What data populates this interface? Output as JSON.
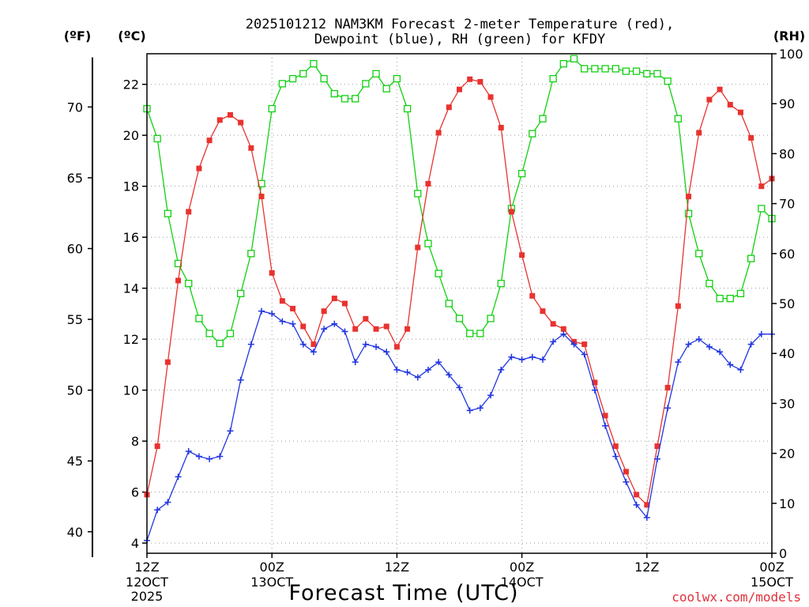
{
  "chart_data": {
    "type": "line",
    "title_line1": "2025101212 NAM3KM Forecast 2-meter Temperature (red),",
    "title_line2": "Dewpoint (blue), RH (green) for KFDY",
    "xlabel": "Forecast Time (UTC)",
    "left_outer_axis_label": "(ºF)",
    "left_inner_axis_label": "(ºC)",
    "right_axis_label": "(RH)",
    "credit": "coolwx.com/models",
    "xlim": [
      0,
      60
    ],
    "ylim_c": [
      3.6,
      23.2
    ],
    "ylim_rh": [
      0,
      100
    ],
    "grid": true,
    "x_ticks": [
      {
        "x": 0,
        "l1": "12Z",
        "l2": "12OCT",
        "l3": "2025"
      },
      {
        "x": 12,
        "l1": "00Z",
        "l2": "13OCT",
        "l3": ""
      },
      {
        "x": 24,
        "l1": "12Z",
        "l2": "",
        "l3": ""
      },
      {
        "x": 36,
        "l1": "00Z",
        "l2": "14OCT",
        "l3": ""
      },
      {
        "x": 48,
        "l1": "12Z",
        "l2": "",
        "l3": ""
      },
      {
        "x": 60,
        "l1": "00Z",
        "l2": "15OCT",
        "l3": ""
      }
    ],
    "c_ticks": [
      "4",
      "6",
      "8",
      "10",
      "12",
      "14",
      "16",
      "18",
      "20",
      "22"
    ],
    "f_ticks": [
      "40",
      "45",
      "50",
      "55",
      "60",
      "65",
      "70"
    ],
    "rh_ticks": [
      "0",
      "10",
      "20",
      "30",
      "40",
      "50",
      "60",
      "70",
      "80",
      "90",
      "100"
    ],
    "series": [
      {
        "name": "2-meter Temperature",
        "units": "C",
        "color": "#e8332f",
        "marker": "filled-square",
        "values": [
          5.9,
          7.8,
          11.1,
          14.3,
          17.0,
          18.7,
          19.8,
          20.6,
          20.8,
          20.5,
          19.5,
          17.6,
          14.6,
          13.5,
          13.2,
          12.5,
          11.8,
          13.1,
          13.6,
          13.4,
          12.4,
          12.8,
          12.4,
          12.5,
          11.7,
          12.4,
          15.6,
          18.1,
          20.1,
          21.1,
          21.8,
          22.2,
          22.1,
          21.5,
          20.3,
          17.0,
          15.3,
          13.7,
          13.1,
          12.6,
          12.4,
          11.9,
          11.8,
          10.3,
          9.0,
          7.8,
          6.8,
          5.9,
          5.5,
          7.8,
          10.1,
          13.3,
          17.6,
          20.1,
          21.4,
          21.8,
          21.2,
          20.9,
          19.9,
          18.0,
          18.3
        ]
      },
      {
        "name": "Dewpoint",
        "units": "C",
        "color": "#2035e0",
        "marker": "plus",
        "values": [
          4.1,
          5.3,
          5.6,
          6.6,
          7.6,
          7.4,
          7.3,
          7.4,
          8.4,
          10.4,
          11.8,
          13.1,
          13.0,
          12.7,
          12.6,
          11.8,
          11.5,
          12.4,
          12.6,
          12.3,
          11.1,
          11.8,
          11.7,
          11.5,
          10.8,
          10.7,
          10.5,
          10.8,
          11.1,
          10.6,
          10.1,
          9.2,
          9.3,
          9.8,
          10.8,
          11.3,
          11.2,
          11.3,
          11.2,
          11.9,
          12.2,
          11.8,
          11.4,
          10.0,
          8.6,
          7.4,
          6.4,
          5.5,
          5.0,
          7.3,
          9.3,
          11.1,
          11.8,
          12.0,
          11.7,
          11.5,
          11.0,
          10.8,
          11.8,
          12.2,
          12.2
        ]
      },
      {
        "name": "RH",
        "units": "%",
        "color": "#10d010",
        "marker": "open-square",
        "values": [
          89,
          83,
          68,
          58,
          54,
          47,
          44,
          42,
          44,
          52,
          60,
          74,
          89,
          94,
          95,
          96,
          98,
          95,
          92,
          91,
          91,
          94,
          96,
          93,
          95,
          89,
          72,
          62,
          56,
          50,
          47,
          44,
          44,
          47,
          54,
          69,
          76,
          84,
          87,
          95,
          98,
          99,
          97,
          97,
          97,
          97,
          96.5,
          96.5,
          96,
          96,
          94.5,
          87,
          68,
          60,
          54,
          51,
          51,
          52,
          59,
          69,
          67
        ]
      }
    ]
  }
}
